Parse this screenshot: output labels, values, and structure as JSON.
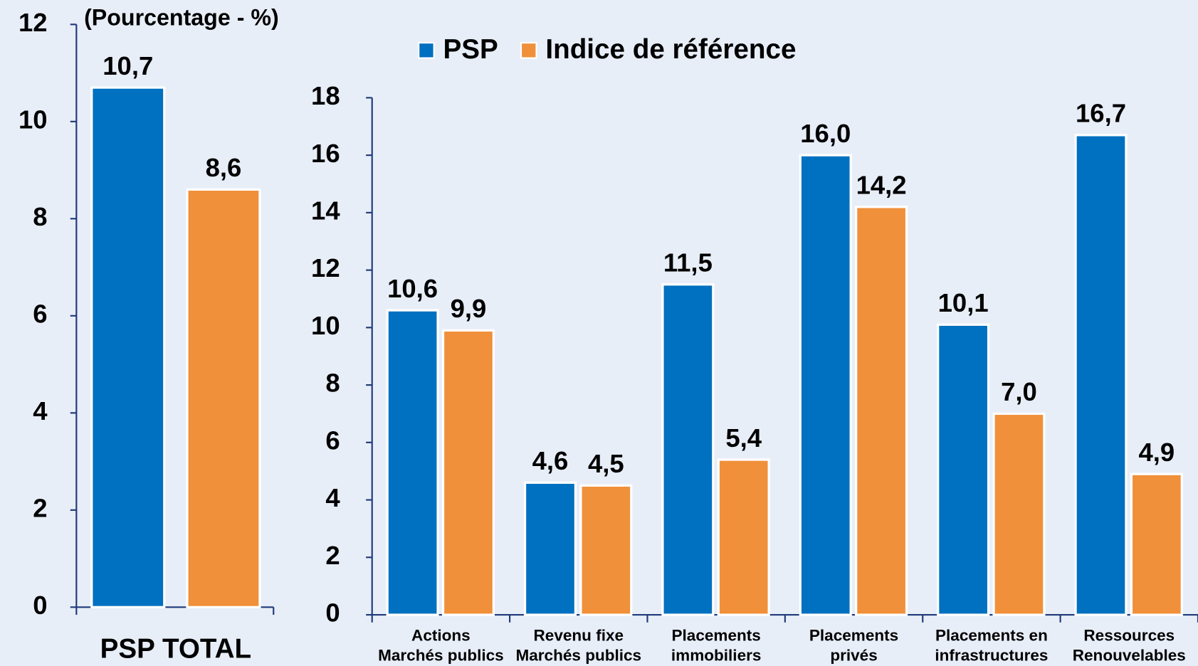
{
  "chart_data": [
    {
      "type": "bar",
      "annotation": "(Pourcentage - %)",
      "categories": [
        "PSP TOTAL"
      ],
      "series": [
        {
          "color": "#0070c0",
          "values": [
            10.7
          ],
          "value_labels": [
            "10,7"
          ]
        },
        {
          "color": "#f0903a",
          "values": [
            8.6
          ],
          "value_labels": [
            "8,6"
          ]
        }
      ],
      "ylim": [
        0,
        12
      ],
      "yticks": [
        0,
        2,
        4,
        6,
        8,
        10,
        12
      ]
    },
    {
      "type": "bar",
      "categories": [
        "Actions\nMarchés publics",
        "Revenu fixe\nMarchés publics",
        "Placements\nimmobiliers",
        "Placements\nprivés",
        "Placements en\ninfrastructures",
        "Ressources\nRenouvelables"
      ],
      "series": [
        {
          "name": "PSP",
          "color": "#0070c0",
          "values": [
            10.6,
            4.6,
            11.5,
            16.0,
            10.1,
            16.7
          ],
          "value_labels": [
            "10,6",
            "4,6",
            "11,5",
            "16,0",
            "10,1",
            "16,7"
          ]
        },
        {
          "name": "Indice de référence",
          "color": "#f0903a",
          "values": [
            9.9,
            4.5,
            5.4,
            14.2,
            7.0,
            4.9
          ],
          "value_labels": [
            "9,9",
            "4,5",
            "5,4",
            "14,2",
            "7,0",
            "4,9"
          ]
        }
      ],
      "ylim": [
        0,
        18
      ],
      "yticks": [
        0,
        2,
        4,
        6,
        8,
        10,
        12,
        14,
        16,
        18
      ]
    }
  ]
}
